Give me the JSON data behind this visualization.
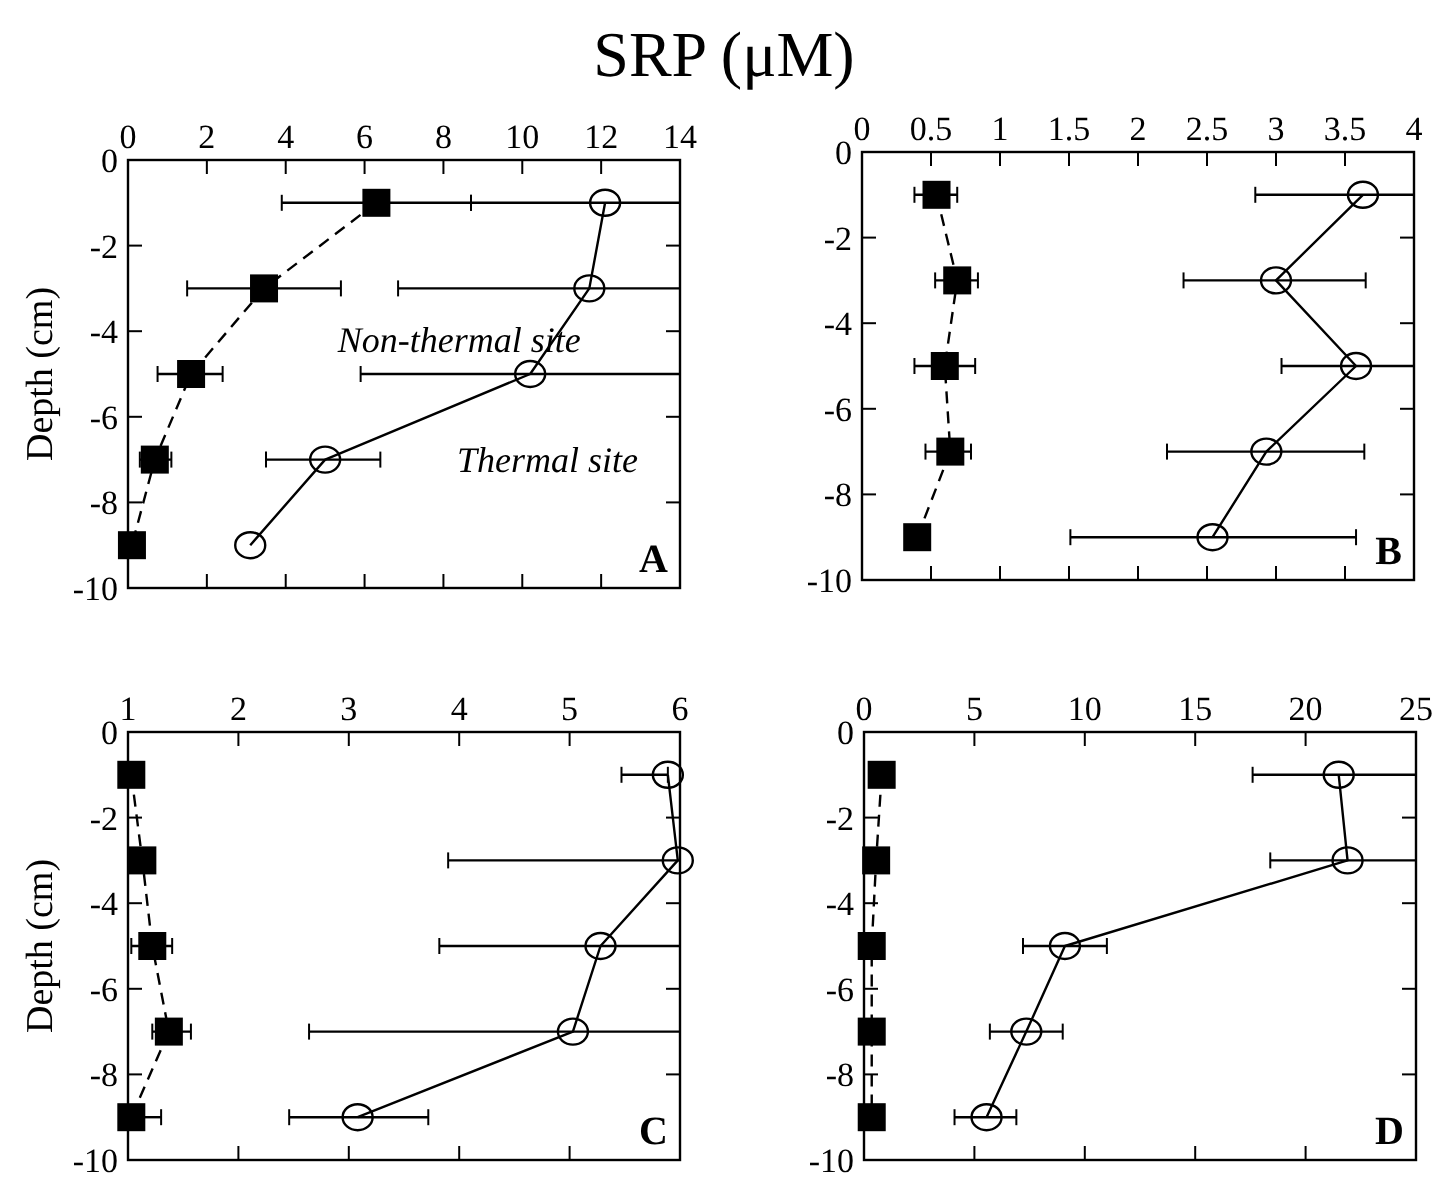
{
  "chart_data": [
    {
      "type": "line",
      "title": "SRP (μM)",
      "ylabel": "Depth (cm)",
      "xlim": [
        0,
        14
      ],
      "xticks": [
        0,
        2,
        4,
        6,
        8,
        10,
        12,
        14
      ],
      "ylim": [
        -10,
        0
      ],
      "yticks": [
        0,
        -2,
        -4,
        -6,
        -8,
        -10
      ],
      "annotations": [
        "A",
        "Non-thermal site",
        "Thermal site"
      ],
      "series": [
        {
          "color": "#000000",
          "marker": "square",
          "line_style": "dashed",
          "x": [
            6.3,
            3.45,
            1.6,
            0.68,
            0.1
          ],
          "values": [
            -1,
            -3,
            -5,
            -7,
            -9
          ],
          "xerrors": [
            [
              3.9,
              8.7
            ],
            [
              1.5,
              5.4
            ],
            [
              0.75,
              2.4
            ],
            [
              0.3,
              1.1
            ],
            null
          ]
        },
        {
          "color": "#000000",
          "marker": "circle",
          "line_style": "solid",
          "x": [
            12.1,
            11.7,
            10.2,
            5.0,
            3.1
          ],
          "values": [
            -1,
            -3,
            -5,
            -7,
            -9
          ],
          "xerrors": [
            [
              8.7,
              14
            ],
            [
              6.85,
              14
            ],
            [
              5.9,
              14
            ],
            [
              3.5,
              6.4
            ],
            null
          ]
        }
      ]
    },
    {
      "type": "line",
      "xlim": [
        0,
        4
      ],
      "xticks": [
        0,
        0.5,
        1,
        1.5,
        2,
        2.5,
        3,
        3.5,
        4
      ],
      "ylim": [
        -10,
        0
      ],
      "yticks": [
        0,
        -2,
        -4,
        -6,
        -8,
        -10
      ],
      "annotations": [
        "B"
      ],
      "series": [
        {
          "color": "#000000",
          "marker": "square",
          "line_style": "dashed",
          "x": [
            0.54,
            0.69,
            0.6,
            0.64,
            0.4
          ],
          "values": [
            -1,
            -3,
            -5,
            -7,
            -9
          ],
          "xerrors": [
            [
              0.38,
              0.69
            ],
            [
              0.53,
              0.84
            ],
            [
              0.38,
              0.82
            ],
            [
              0.46,
              0.79
            ],
            null
          ]
        },
        {
          "color": "#000000",
          "marker": "circle",
          "line_style": "solid",
          "x": [
            3.63,
            3.0,
            3.58,
            2.93,
            2.54
          ],
          "values": [
            -1,
            -3,
            -5,
            -7,
            -9
          ],
          "xerrors": [
            [
              2.85,
              4
            ],
            [
              2.33,
              3.65
            ],
            [
              3.04,
              4
            ],
            [
              2.21,
              3.64
            ],
            [
              1.51,
              3.58
            ]
          ]
        }
      ]
    },
    {
      "type": "line",
      "ylabel": "Depth (cm)",
      "xlim": [
        1,
        6
      ],
      "xticks": [
        1,
        2,
        3,
        4,
        5,
        6
      ],
      "ylim": [
        -10,
        0
      ],
      "yticks": [
        0,
        -2,
        -4,
        -6,
        -8,
        -10
      ],
      "annotations": [
        "C"
      ],
      "series": [
        {
          "color": "#000000",
          "marker": "square",
          "line_style": "dashed",
          "x": [
            1.03,
            1.13,
            1.22,
            1.37,
            1.03
          ],
          "values": [
            -1,
            -3,
            -5,
            -7,
            -9
          ],
          "xerrors": [
            null,
            null,
            [
              1.03,
              1.4
            ],
            [
              1.22,
              1.57
            ],
            [
              1.03,
              1.3
            ]
          ]
        },
        {
          "color": "#000000",
          "marker": "circle",
          "line_style": "solid",
          "x": [
            5.89,
            5.98,
            5.28,
            5.03,
            3.08
          ],
          "values": [
            -1,
            -3,
            -5,
            -7,
            -9
          ],
          "xerrors": [
            [
              5.47,
              5.89
            ],
            [
              3.9,
              6
            ],
            [
              3.82,
              6
            ],
            [
              2.64,
              6
            ],
            [
              2.46,
              3.72
            ]
          ]
        }
      ]
    },
    {
      "type": "line",
      "xlim": [
        0,
        25
      ],
      "xticks": [
        0,
        5,
        10,
        15,
        20,
        25
      ],
      "ylim": [
        -10,
        0
      ],
      "yticks": [
        0,
        -2,
        -4,
        -6,
        -8,
        -10
      ],
      "annotations": [
        "D"
      ],
      "series": [
        {
          "color": "#000000",
          "marker": "square",
          "line_style": "dashed",
          "x": [
            0.8,
            0.55,
            0.35,
            0.35,
            0.35
          ],
          "values": [
            -1,
            -3,
            -5,
            -7,
            -9
          ]
        },
        {
          "color": "#000000",
          "marker": "circle",
          "line_style": "solid",
          "x": [
            21.5,
            21.9,
            9.1,
            7.35,
            5.55
          ],
          "values": [
            -1,
            -3,
            -5,
            -7,
            -9
          ],
          "xerrors": [
            [
              17.6,
              25
            ],
            [
              18.4,
              25
            ],
            [
              7.2,
              11.0
            ],
            [
              5.7,
              9.0
            ],
            [
              4.1,
              6.9
            ]
          ]
        }
      ]
    }
  ]
}
